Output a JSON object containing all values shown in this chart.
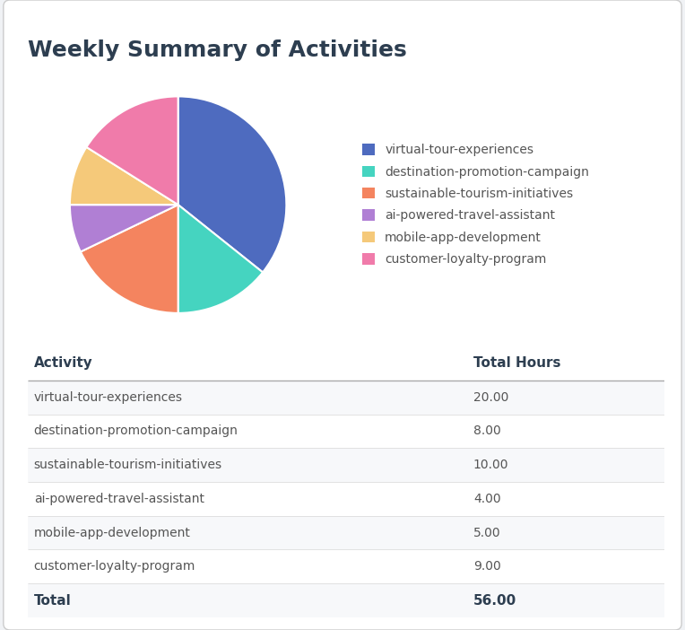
{
  "title": "Weekly Summary of Activities",
  "activities": [
    "virtual-tour-experiences",
    "destination-promotion-campaign",
    "sustainable-tourism-initiatives",
    "ai-powered-travel-assistant",
    "mobile-app-development",
    "customer-loyalty-program"
  ],
  "hours": [
    20.0,
    8.0,
    10.0,
    4.0,
    5.0,
    9.0
  ],
  "total": 56.0,
  "colors": [
    "#4e6bbf",
    "#45d4c0",
    "#f4845f",
    "#b07fd4",
    "#f5c97a",
    "#f07baa"
  ],
  "bg_color": "#f0f2f5",
  "card_color": "#ffffff",
  "title_color": "#2d3e50",
  "table_header_color": "#2d3e50",
  "table_row_even_color": "#f7f8fa",
  "table_row_odd_color": "#ffffff",
  "table_text_color": "#555555",
  "table_total_color": "#2d3e50",
  "legend_text_color": "#555555",
  "table_header_labels": [
    "Activity",
    "Total Hours"
  ],
  "title_fontsize": 18,
  "legend_fontsize": 10,
  "table_fontsize": 10,
  "header_fontsize": 11
}
